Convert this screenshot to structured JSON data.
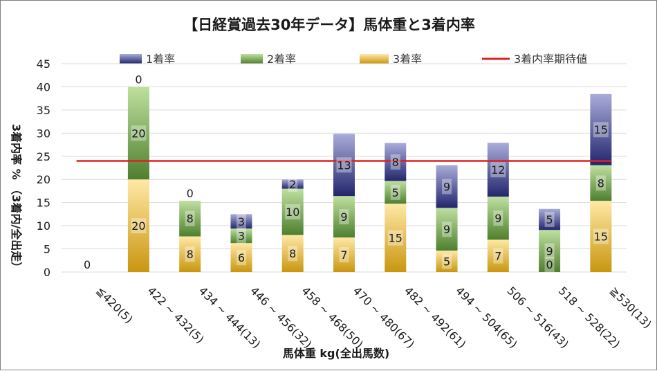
{
  "chart_data": {
    "type": "bar",
    "stacked": true,
    "title": "【日経賞過去30年データ】馬体重と3着内率",
    "xlabel": "馬体重 kg(全出馬数)",
    "ylabel": "3着内率 % （3着内/全出走）",
    "ylim": [
      0,
      45
    ],
    "yticks": [
      "0",
      "5",
      "10",
      "15",
      "20",
      "25",
      "30",
      "35",
      "40",
      "45"
    ],
    "grid": true,
    "legend_position": "top",
    "categories": [
      "≦420(5)",
      "422 ~ 432(5)",
      "434 ~ 444(13)",
      "446 ~ 456(32)",
      "458 ~ 468(50)",
      "470 ~ 480(67)",
      "482 ~ 492(61)",
      "494 ~ 504(65)",
      "506 ~ 516(43)",
      "518 ~ 528(22)",
      "≧530(13)"
    ],
    "series": [
      {
        "name": "3着率",
        "values": [
          0,
          20,
          7.7,
          6.25,
          8,
          7.46,
          14.75,
          4.62,
          6.98,
          0,
          15.38
        ],
        "labels": [
          "0",
          "20",
          "8",
          "6",
          "8",
          "7",
          "15",
          "5",
          "7",
          "0",
          "15"
        ],
        "color": "#d4a62a"
      },
      {
        "name": "2着率",
        "values": [
          0,
          20,
          7.7,
          3.13,
          10,
          8.96,
          4.92,
          9.23,
          9.3,
          9.09,
          7.69
        ],
        "labels": [
          "",
          "20",
          "8",
          "3",
          "10",
          "9",
          "5",
          "9",
          "9",
          "9",
          "8"
        ],
        "color": "#6f9a46"
      },
      {
        "name": "1着率",
        "values": [
          0,
          0,
          0,
          3.13,
          2,
          13.43,
          8.2,
          9.23,
          11.63,
          4.55,
          15.38
        ],
        "labels": [
          "",
          "0",
          "0",
          "3",
          "2",
          "13",
          "8",
          "9",
          "12",
          "5",
          "15"
        ],
        "color": "#3d3f8f"
      }
    ],
    "reference_line": {
      "name": "3着内率期待値",
      "value": 24,
      "color": "#e02020"
    }
  }
}
